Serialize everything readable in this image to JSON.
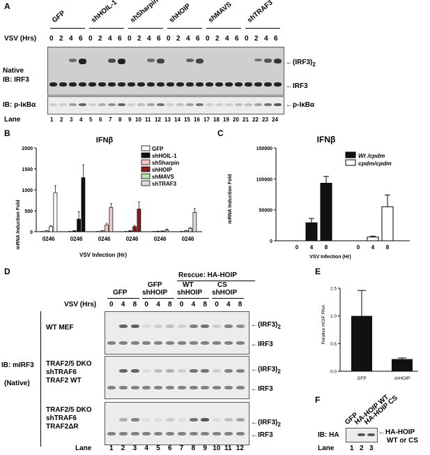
{
  "panelA": {
    "letter": "A",
    "groups": [
      "GFP",
      "shHOIL-1",
      "shSharpin",
      "shHOIP",
      "shMAVS",
      "shTRAF3"
    ],
    "vsv_label": "VSV (Hrs)",
    "times": [
      "0",
      "2",
      "4",
      "6"
    ],
    "native_label": "Native",
    "ib_irf3": "IB: IRF3",
    "ib_pikba": "IB: p-IκBα",
    "dimer_label": "(IRF3)",
    "dimer_sub": "2",
    "irf3_label": "IRF3",
    "pikba_label": "p-IκBα",
    "lane_label": "Lane",
    "lanes": [
      "1",
      "2",
      "3",
      "4",
      "5",
      "6",
      "7",
      "8",
      "9",
      "10",
      "11",
      "12",
      "13",
      "14",
      "15",
      "16",
      "17",
      "18",
      "19",
      "20",
      "21",
      "22",
      "23",
      "24"
    ]
  },
  "panelB": {
    "letter": "B",
    "title": "IFNβ",
    "ylabel": "mRNA Induction Fold",
    "xlabel": "VSV Infection (Hr)",
    "tick_group_labels": [
      "0246",
      "0246",
      "0246",
      "0246",
      "0246",
      "0246"
    ],
    "colors": {
      "GFP": "#ffffff",
      "shHOIL-1": "#111111",
      "shSharpin": "#f4c9c9",
      "shHOIP": "#8b1a1a",
      "shMAVS": "#b9e0a9",
      "shTRAF3": "#dddddd"
    }
  },
  "panelC": {
    "letter": "C",
    "title": "IFNβ",
    "ylabel": "mRNA Induction Fold",
    "xlabel": "VSV Infection (Hr)"
  },
  "panelD": {
    "letter": "D",
    "rescue_label": "Rescue: HA-HOIP",
    "col_groups": [
      {
        "top": "GFP",
        "bottom": ""
      },
      {
        "top": "GFP",
        "bottom": "shHOIP"
      },
      {
        "top": "WT",
        "bottom": "shHOIP"
      },
      {
        "top": "CS",
        "bottom": "shHOIP"
      }
    ],
    "vsv_label": "VSV (Hrs)",
    "times": [
      "0",
      "4",
      "8"
    ],
    "ib_label": "IB: mIRF3",
    "native_label": "(Native)",
    "rows": [
      {
        "lines": [
          "WT MEF"
        ]
      },
      {
        "lines": [
          "TRAF2/5 DKO",
          "shTRAF6",
          "TRAF2 WT"
        ]
      },
      {
        "lines": [
          "TRAF2/5 DKO",
          "shTRAF6",
          "TRAF2ΔR"
        ]
      }
    ],
    "dimer_label": "(IRF3)",
    "dimer_sub": "2",
    "irf3_label": "IRF3",
    "lane_label": "Lane",
    "lanes": [
      "1",
      "2",
      "3",
      "4",
      "5",
      "6",
      "7",
      "8",
      "9",
      "10",
      "11",
      "12"
    ]
  },
  "panelE": {
    "letter": "E",
    "ylabel": "Relative HOIP RNA"
  },
  "panelF": {
    "letter": "F",
    "cols": [
      "GFP",
      "HA-HOIP WT",
      "HA-HOIP CS"
    ],
    "ib_label": "IB: HA",
    "band_label": "HA-HOIP",
    "band_label2": "WT or CS",
    "lane_label": "Lane",
    "lanes": [
      "1",
      "2",
      "3"
    ]
  },
  "chart_data": [
    {
      "type": "bar",
      "title": "IFNβ",
      "xlabel": "VSV Infection (Hr)",
      "ylabel": "mRNA Induction Fold",
      "ylim": [
        0,
        2000
      ],
      "yticks": [
        "0",
        "500",
        "1000",
        "1500",
        "2000"
      ],
      "categories": [
        "0",
        "2",
        "4",
        "6"
      ],
      "legend_position": "top-right",
      "series": [
        {
          "name": "GFP",
          "values": [
            5,
            20,
            120,
            930
          ],
          "errors": [
            2,
            5,
            25,
            170
          ]
        },
        {
          "name": "shHOIL-1",
          "values": [
            5,
            20,
            300,
            1290
          ],
          "errors": [
            2,
            5,
            180,
            310
          ]
        },
        {
          "name": "shSharpin",
          "values": [
            5,
            20,
            160,
            580
          ],
          "errors": [
            2,
            5,
            40,
            90
          ]
        },
        {
          "name": "shHOIP",
          "values": [
            5,
            20,
            120,
            540
          ],
          "errors": [
            2,
            5,
            30,
            170
          ]
        },
        {
          "name": "shMAVS",
          "values": [
            5,
            10,
            15,
            40
          ],
          "errors": [
            2,
            3,
            5,
            25
          ]
        },
        {
          "name": "shTRAF3",
          "values": [
            5,
            20,
            80,
            460
          ],
          "errors": [
            2,
            5,
            20,
            90
          ]
        }
      ]
    },
    {
      "type": "bar",
      "title": "IFNβ",
      "xlabel": "VSV Infection (Hr)",
      "ylabel": "mRNA Induction Fold",
      "ylim": [
        0,
        150000
      ],
      "yticks": [
        "0",
        "50000",
        "100000",
        "150000"
      ],
      "categories": [
        "0",
        "4",
        "8"
      ],
      "legend_position": "top-right",
      "series": [
        {
          "name": "Wt /cpdm",
          "values": [
            0,
            29000,
            93000
          ],
          "errors": [
            0,
            7000,
            11000
          ]
        },
        {
          "name": "cpdm/cpdm",
          "values": [
            0,
            6000,
            55000
          ],
          "errors": [
            0,
            1500,
            19000
          ]
        }
      ]
    },
    {
      "type": "bar",
      "xlabel": "",
      "ylabel": "Relative HOIP RNA",
      "ylim": [
        0,
        1.5
      ],
      "yticks": [
        "0.0",
        "0.5",
        "1.0",
        "1.5"
      ],
      "categories": [
        "GFP",
        "shHOIP"
      ],
      "values": [
        1.0,
        0.22
      ],
      "errors": [
        0.46,
        0.02
      ]
    }
  ]
}
